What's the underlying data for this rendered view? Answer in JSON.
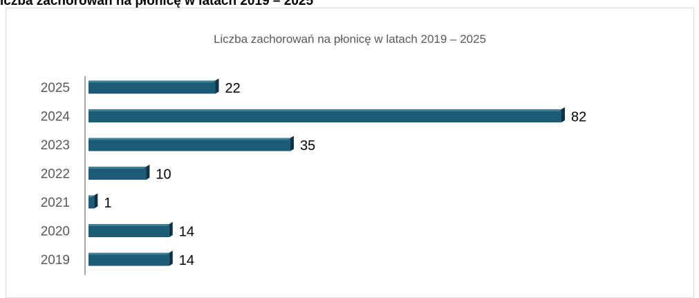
{
  "page": {
    "caption": "iczba zachorowań na płonicę  w latach 2019 – 2025"
  },
  "chart_data": {
    "type": "bar",
    "orientation": "horizontal",
    "title": "Liczba zachorowań na płonicę  w latach 2019 – 2025",
    "categories": [
      "2025",
      "2024",
      "2023",
      "2022",
      "2021",
      "2020",
      "2019"
    ],
    "values": [
      22,
      82,
      35,
      10,
      1,
      14,
      14
    ],
    "data_labels": [
      "22",
      "82",
      "35",
      "10",
      "1",
      "14",
      "14"
    ],
    "xlim": [
      0,
      82
    ],
    "grid": false,
    "legend": "none",
    "bar_color": "#1b5b76",
    "bar_shadow_color": "#0e3347",
    "bar_highlight_color": "#3f7f97",
    "axis_color": "#a6a6a6"
  }
}
